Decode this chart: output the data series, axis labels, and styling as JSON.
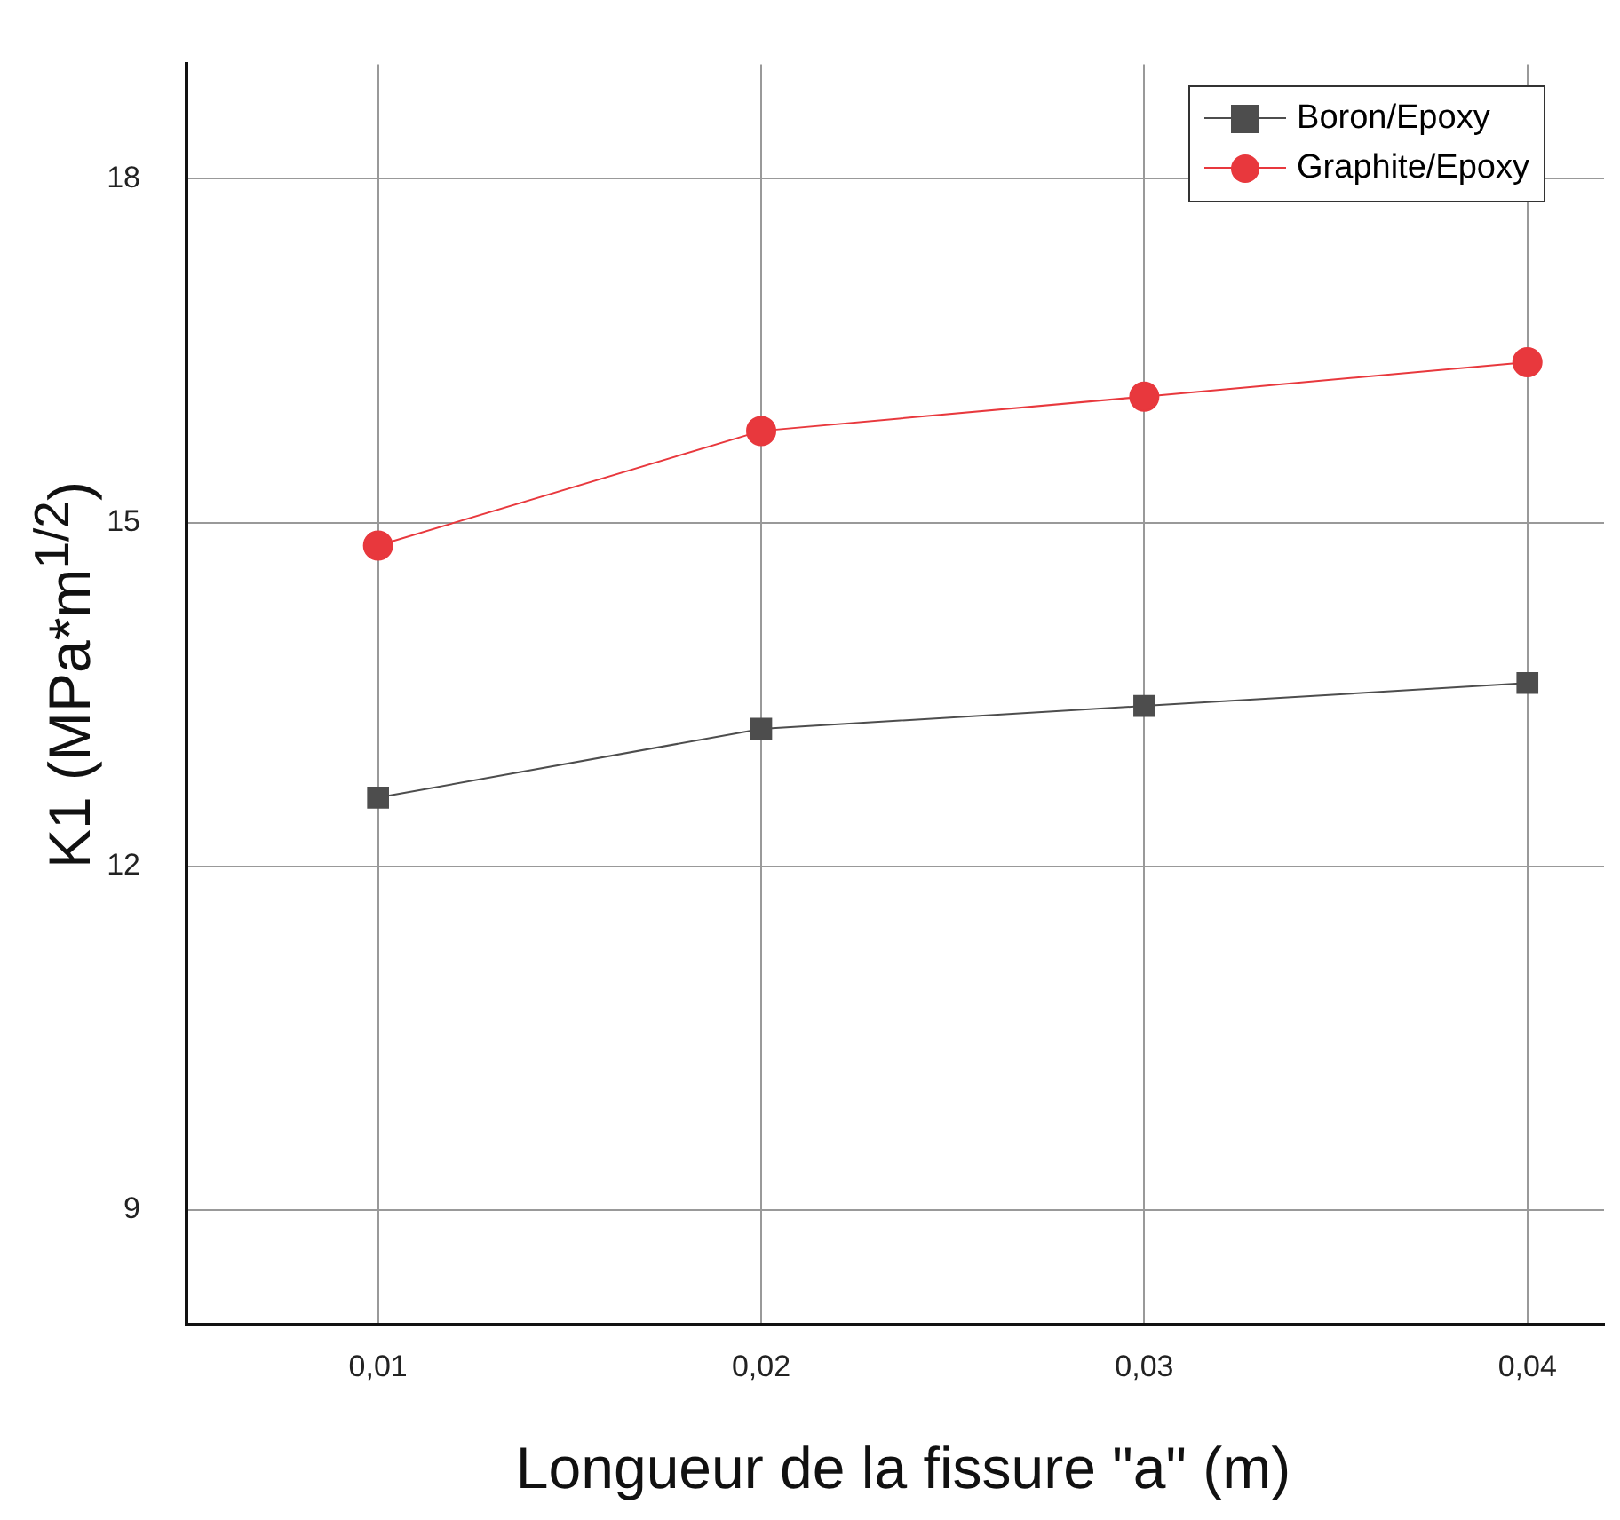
{
  "chart_data": {
    "type": "line",
    "xlabel": "Longueur de la fissure \"a\" (m)",
    "ylabel": "K1 (MPa*m$^{1/2}$)",
    "x": [
      0.01,
      0.02,
      0.03,
      0.04
    ],
    "series": [
      {
        "name": "Boron/Epoxy",
        "color": "#4d4d4d",
        "marker": "square",
        "values": [
          12.6,
          13.2,
          13.4,
          13.6
        ]
      },
      {
        "name": "Graphite/Epoxy",
        "color": "#e8383d",
        "marker": "circle",
        "values": [
          14.8,
          15.8,
          16.1,
          16.4
        ]
      }
    ],
    "xlim": [
      0.005,
      0.042
    ],
    "xticks": [
      {
        "value": 0.01,
        "label": "0,01"
      },
      {
        "value": 0.02,
        "label": "0,02"
      },
      {
        "value": 0.03,
        "label": "0,03"
      },
      {
        "value": 0.04,
        "label": "0,04"
      }
    ],
    "ylim": [
      8,
      19
    ],
    "yticks": [
      9,
      12,
      15,
      18
    ],
    "grid": true,
    "legend": "top right",
    "line_style": "solid"
  }
}
